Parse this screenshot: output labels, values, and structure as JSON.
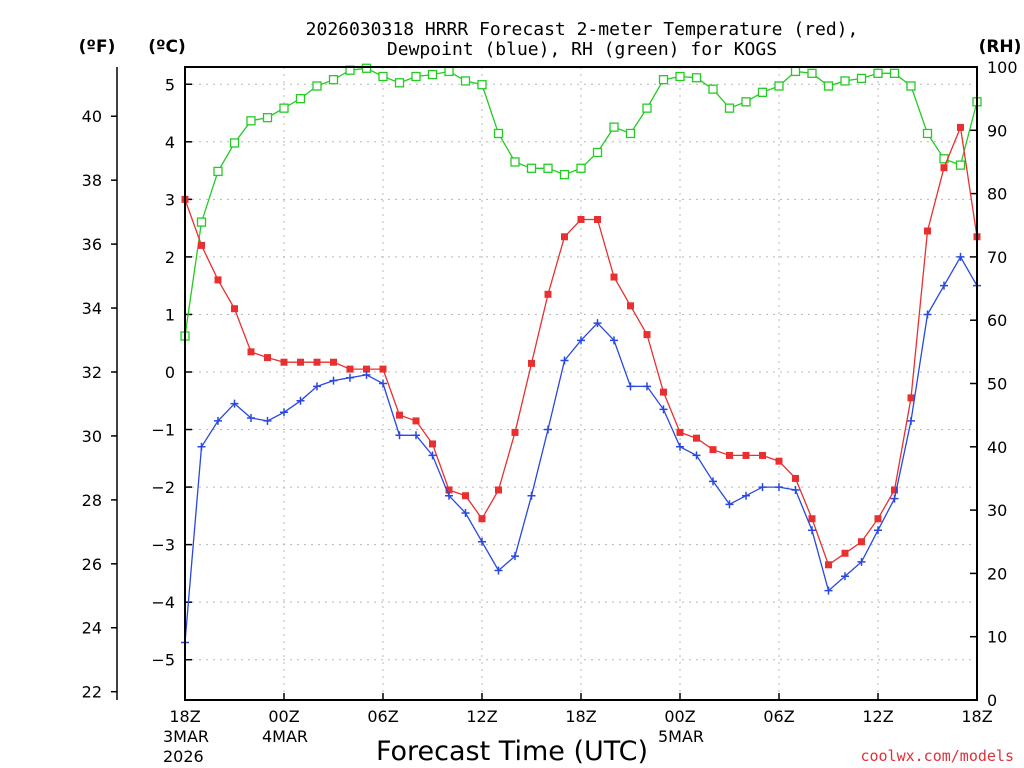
{
  "chart_data": {
    "type": "line",
    "title_line1": "2026030318 HRRR Forecast 2-meter Temperature (red),",
    "title_line2": "Dewpoint (blue), RH (green) for KOGS",
    "xlabel": "Forecast Time (UTC)",
    "credit": "coolwx.com/models",
    "unit_f": "(ºF)",
    "unit_c": "(ºC)",
    "unit_rh": "(RH)",
    "x_hours_range": [
      0,
      48
    ],
    "celsius_range": [
      -5.7,
      5.3
    ],
    "rh_range": [
      0,
      100
    ],
    "x_ticks": [
      {
        "hour": 0,
        "label": "18Z",
        "date1": "3MAR",
        "date2": "2026"
      },
      {
        "hour": 6,
        "label": "00Z",
        "date1": "4MAR",
        "date2": ""
      },
      {
        "hour": 12,
        "label": "06Z",
        "date1": "",
        "date2": ""
      },
      {
        "hour": 18,
        "label": "12Z",
        "date1": "",
        "date2": ""
      },
      {
        "hour": 24,
        "label": "18Z",
        "date1": "",
        "date2": ""
      },
      {
        "hour": 30,
        "label": "00Z",
        "date1": "5MAR",
        "date2": ""
      },
      {
        "hour": 36,
        "label": "06Z",
        "date1": "",
        "date2": ""
      },
      {
        "hour": 42,
        "label": "12Z",
        "date1": "",
        "date2": ""
      },
      {
        "hour": 48,
        "label": "18Z",
        "date1": "",
        "date2": ""
      }
    ],
    "celsius_ticks": [
      "5",
      "4",
      "3",
      "2",
      "1",
      "0",
      "−1",
      "−2",
      "−3",
      "−4",
      "−5"
    ],
    "fahrenheit_ticks": [
      "40",
      "38",
      "36",
      "34",
      "32",
      "30",
      "28",
      "26",
      "24",
      "22"
    ],
    "rh_ticks": [
      "100",
      "90",
      "80",
      "70",
      "60",
      "50",
      "40",
      "30",
      "20",
      "10",
      "0"
    ],
    "series": [
      {
        "name": "Temperature",
        "units": "C",
        "color": "#e83030",
        "values": [
          3.0,
          2.2,
          1.6,
          1.1,
          0.35,
          0.25,
          0.17,
          0.17,
          0.17,
          0.17,
          0.05,
          0.05,
          0.05,
          -0.75,
          -0.85,
          -1.25,
          -2.05,
          -2.15,
          -2.55,
          -2.05,
          -1.05,
          0.15,
          1.35,
          2.35,
          2.65,
          2.65,
          1.65,
          1.15,
          0.65,
          -0.35,
          -1.05,
          -1.15,
          -1.35,
          -1.45,
          -1.45,
          -1.45,
          -1.55,
          -1.85,
          -2.55,
          -3.35,
          -3.15,
          -2.95,
          -2.55,
          -2.05,
          -0.45,
          2.45,
          3.55,
          4.25,
          2.35
        ]
      },
      {
        "name": "Dewpoint",
        "units": "C",
        "color": "#2848e0",
        "values": [
          -4.7,
          -1.3,
          -0.85,
          -0.55,
          -0.8,
          -0.85,
          -0.7,
          -0.5,
          -0.25,
          -0.15,
          -0.1,
          -0.05,
          -0.2,
          -1.1,
          -1.1,
          -1.45,
          -2.15,
          -2.45,
          -2.95,
          -3.45,
          -3.2,
          -2.15,
          -1.0,
          0.2,
          0.55,
          0.85,
          0.55,
          -0.25,
          -0.25,
          -0.65,
          -1.3,
          -1.45,
          -1.9,
          -2.3,
          -2.15,
          -2.0,
          -2.0,
          -2.05,
          -2.75,
          -3.8,
          -3.55,
          -3.3,
          -2.75,
          -2.2,
          -0.85,
          1.0,
          1.5,
          2.0,
          1.5
        ]
      },
      {
        "name": "RH",
        "units": "%",
        "color": "#22cc22",
        "values": [
          57.5,
          75.5,
          83.5,
          88.0,
          91.5,
          92.0,
          93.5,
          95.0,
          97.0,
          98.0,
          99.5,
          99.8,
          98.5,
          97.5,
          98.5,
          98.8,
          99.3,
          97.8,
          97.2,
          89.5,
          85.0,
          84.0,
          84.0,
          83.0,
          84.0,
          86.5,
          90.5,
          89.5,
          93.5,
          98.0,
          98.5,
          98.3,
          96.5,
          93.5,
          94.5,
          96.0,
          97.0,
          99.3,
          99.0,
          97.0,
          97.8,
          98.2,
          99.0,
          99.0,
          97.0,
          89.5,
          85.5,
          84.5,
          94.5
        ]
      }
    ]
  }
}
